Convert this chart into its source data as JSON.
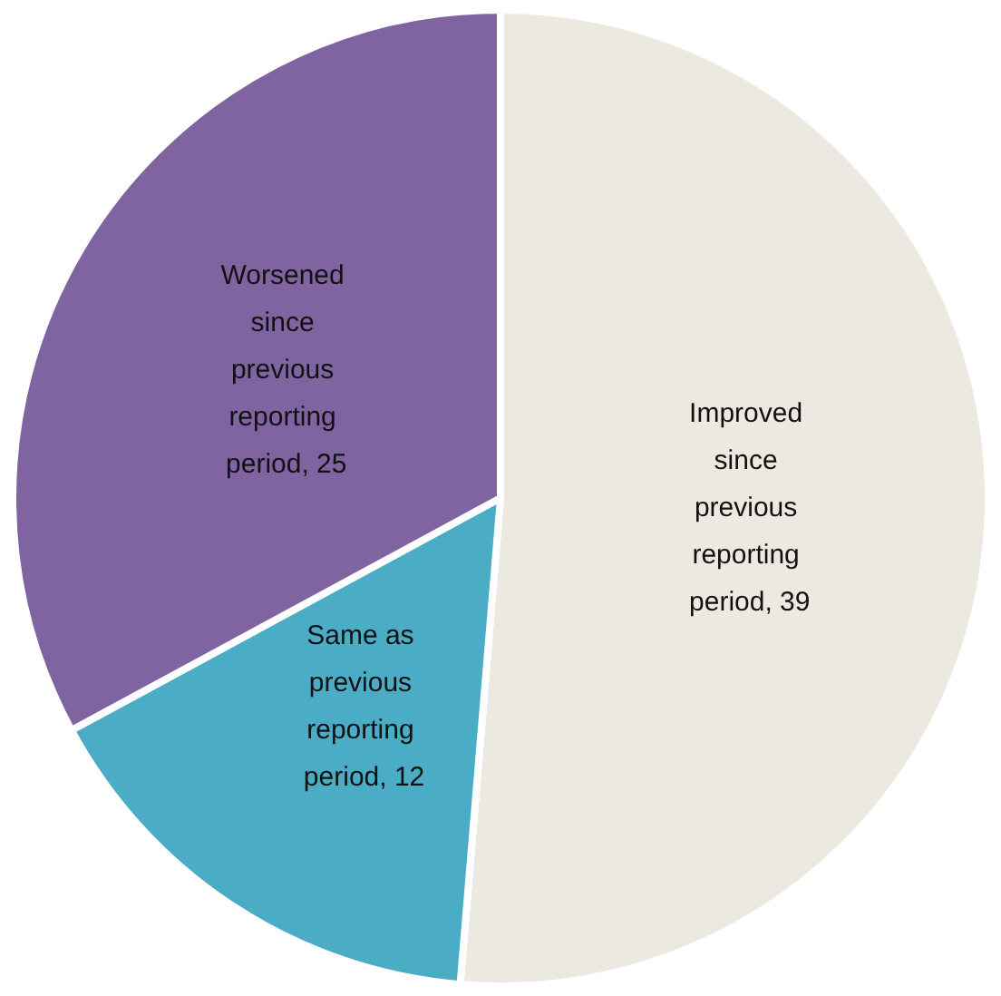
{
  "chart_data": {
    "type": "pie",
    "categories": [
      "Improved since previous reporting period",
      "Same as previous reporting period",
      "Worsened since previous reporting period"
    ],
    "values": [
      39,
      12,
      25
    ],
    "colors": [
      "#eceae0",
      "#4bacc6",
      "#8064a2"
    ],
    "value_labels": [
      "39",
      "12",
      "25"
    ],
    "legend": false
  }
}
